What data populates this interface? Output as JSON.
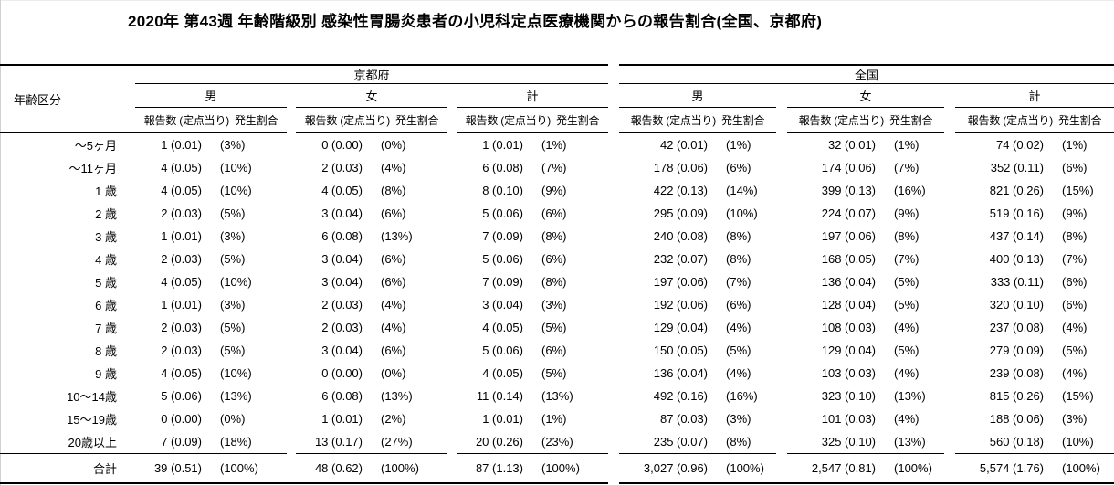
{
  "chart_data": {
    "type": "table",
    "title": "2020年 第43週 年齢階級別 感染性胃腸炎患者の小児科定点医療機関からの報告割合(全国、京都府)",
    "row_header": "年齢区分",
    "col_groups": [
      "京都府",
      "全国"
    ],
    "sub_groups": [
      "男",
      "女",
      "計"
    ],
    "measures": [
      "報告数 (定点当り)",
      "発生割合"
    ],
    "column_order": [
      "年齢区分",
      "京都府-男-報告数(定点当り)",
      "京都府-男-発生割合",
      "京都府-女-報告数(定点当り)",
      "京都府-女-発生割合",
      "京都府-計-報告数(定点当り)",
      "京都府-計-発生割合",
      "全国-男-報告数(定点当り)",
      "全国-男-発生割合",
      "全国-女-報告数(定点当り)",
      "全国-女-発生割合",
      "全国-計-報告数(定点当り)",
      "全国-計-発生割合"
    ],
    "rows": [
      [
        "〜5ヶ月",
        "1 (0.01)",
        "(3%)",
        "0 (0.00)",
        "(0%)",
        "1 (0.01)",
        "(1%)",
        "42 (0.01)",
        "(1%)",
        "32 (0.01)",
        "(1%)",
        "74 (0.02)",
        "(1%)"
      ],
      [
        "〜11ヶ月",
        "4 (0.05)",
        "(10%)",
        "2 (0.03)",
        "(4%)",
        "6 (0.08)",
        "(7%)",
        "178 (0.06)",
        "(6%)",
        "174 (0.06)",
        "(7%)",
        "352 (0.11)",
        "(6%)"
      ],
      [
        "1 歳",
        "4 (0.05)",
        "(10%)",
        "4 (0.05)",
        "(8%)",
        "8 (0.10)",
        "(9%)",
        "422 (0.13)",
        "(14%)",
        "399 (0.13)",
        "(16%)",
        "821 (0.26)",
        "(15%)"
      ],
      [
        "2 歳",
        "2 (0.03)",
        "(5%)",
        "3 (0.04)",
        "(6%)",
        "5 (0.06)",
        "(6%)",
        "295 (0.09)",
        "(10%)",
        "224 (0.07)",
        "(9%)",
        "519 (0.16)",
        "(9%)"
      ],
      [
        "3 歳",
        "1 (0.01)",
        "(3%)",
        "6 (0.08)",
        "(13%)",
        "7 (0.09)",
        "(8%)",
        "240 (0.08)",
        "(8%)",
        "197 (0.06)",
        "(8%)",
        "437 (0.14)",
        "(8%)"
      ],
      [
        "4 歳",
        "2 (0.03)",
        "(5%)",
        "3 (0.04)",
        "(6%)",
        "5 (0.06)",
        "(6%)",
        "232 (0.07)",
        "(8%)",
        "168 (0.05)",
        "(7%)",
        "400 (0.13)",
        "(7%)"
      ],
      [
        "5 歳",
        "4 (0.05)",
        "(10%)",
        "3 (0.04)",
        "(6%)",
        "7 (0.09)",
        "(8%)",
        "197 (0.06)",
        "(7%)",
        "136 (0.04)",
        "(5%)",
        "333 (0.11)",
        "(6%)"
      ],
      [
        "6 歳",
        "1 (0.01)",
        "(3%)",
        "2 (0.03)",
        "(4%)",
        "3 (0.04)",
        "(3%)",
        "192 (0.06)",
        "(6%)",
        "128 (0.04)",
        "(5%)",
        "320 (0.10)",
        "(6%)"
      ],
      [
        "7 歳",
        "2 (0.03)",
        "(5%)",
        "2 (0.03)",
        "(4%)",
        "4 (0.05)",
        "(5%)",
        "129 (0.04)",
        "(4%)",
        "108 (0.03)",
        "(4%)",
        "237 (0.08)",
        "(4%)"
      ],
      [
        "8 歳",
        "2 (0.03)",
        "(5%)",
        "3 (0.04)",
        "(6%)",
        "5 (0.06)",
        "(6%)",
        "150 (0.05)",
        "(5%)",
        "129 (0.04)",
        "(5%)",
        "279 (0.09)",
        "(5%)"
      ],
      [
        "9 歳",
        "4 (0.05)",
        "(10%)",
        "0 (0.00)",
        "(0%)",
        "4 (0.05)",
        "(5%)",
        "136 (0.04)",
        "(4%)",
        "103 (0.03)",
        "(4%)",
        "239 (0.08)",
        "(4%)"
      ],
      [
        "10〜14歳",
        "5 (0.06)",
        "(13%)",
        "6 (0.08)",
        "(13%)",
        "11 (0.14)",
        "(13%)",
        "492 (0.16)",
        "(16%)",
        "323 (0.10)",
        "(13%)",
        "815 (0.26)",
        "(15%)"
      ],
      [
        "15〜19歳",
        "0 (0.00)",
        "(0%)",
        "1 (0.01)",
        "(2%)",
        "1 (0.01)",
        "(1%)",
        "87 (0.03)",
        "(3%)",
        "101 (0.03)",
        "(4%)",
        "188 (0.06)",
        "(3%)"
      ],
      [
        "20歳以上",
        "7 (0.09)",
        "(18%)",
        "13 (0.17)",
        "(27%)",
        "20 (0.26)",
        "(23%)",
        "235 (0.07)",
        "(8%)",
        "325 (0.10)",
        "(13%)",
        "560 (0.18)",
        "(10%)"
      ],
      [
        "合計",
        "39 (0.51)",
        "(100%)",
        "48 (0.62)",
        "(100%)",
        "87 (1.13)",
        "(100%)",
        "3,027 (0.96)",
        "(100%)",
        "2,547 (0.81)",
        "(100%)",
        "5,574 (1.76)",
        "(100%)"
      ]
    ]
  }
}
